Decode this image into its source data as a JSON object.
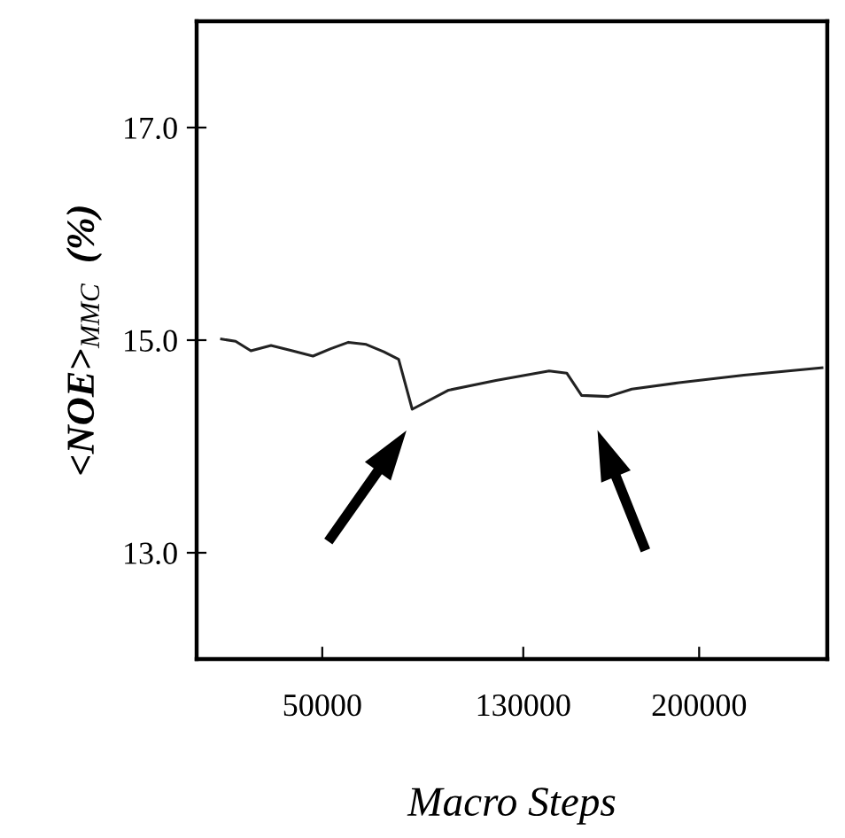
{
  "chart_data": {
    "type": "line",
    "xlabel": "Macro Steps",
    "ylabel": "<NOE>$_{MMC}$  (%)",
    "x": [
      9900,
      15500,
      21600,
      29600,
      38100,
      46300,
      53400,
      60400,
      67500,
      74500,
      80400,
      85800,
      100300,
      119100,
      140300,
      147300,
      153200,
      163800,
      173200,
      192000,
      217800,
      248900
    ],
    "series": [
      {
        "color": "#222222",
        "values": [
          15.01,
          14.99,
          14.9,
          14.95,
          14.9,
          14.85,
          14.92,
          14.98,
          14.96,
          14.89,
          14.82,
          14.35,
          14.53,
          14.62,
          14.71,
          14.69,
          14.48,
          14.47,
          14.54,
          14.6,
          14.67,
          14.74
        ]
      }
    ],
    "xlim": [
      0,
      251000
    ],
    "ylim": [
      12.0,
      18.0
    ],
    "xticks": [
      50000,
      130000,
      200000
    ],
    "yticks": [
      {
        "value": 13,
        "label": "13.0"
      },
      {
        "value": 15,
        "label": "15.0"
      },
      {
        "value": 17,
        "label": "17.0"
      }
    ],
    "grid": false,
    "legend": false,
    "marker": "none",
    "line_style": "solid"
  }
}
